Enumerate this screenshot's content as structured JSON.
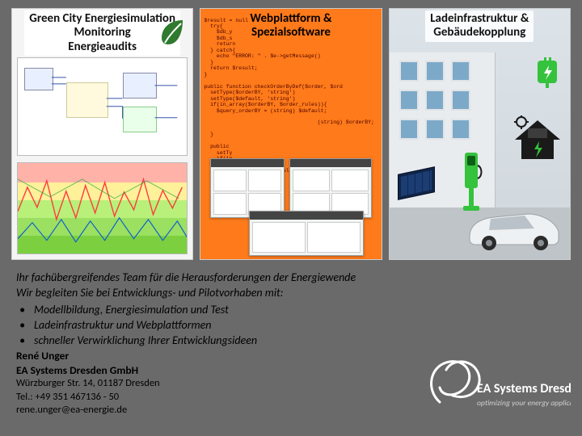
{
  "cards": [
    {
      "title": "Green City Energiesimulation\nMonitoring\nEnergieaudits",
      "leaf_color": "#2f7a2f"
    },
    {
      "title": "Webplattform &\nSpezialsoftware",
      "accent": "#ff7a1a",
      "code": "$result = null\n  try{\n    $db_y\n    $db_s\n    return\n  } catch{\n    echo \"ERROR: \" . $e->getMessage()\n  }\n  return $result;\n}\n\npublic function checkOrderByDef($order, $ord\n  setType($orderBY, 'string')\n  setType($default, 'string')\n  if(in_array($orderBY, $order_rules)){\n    $query_orderBY = (string) $default;\n\n                                    (string) $orderBY;\n\n  }\n\n  public\n    setTy\n    if(in\n      $que\n      return(string)$default;($ord\n    }\n  # result OK"
    },
    {
      "title": "Ladeinfrastruktur &\nGebäudekopplung",
      "charge_color": "#35c23d",
      "house_color": "#1a1a1a"
    }
  ],
  "text": {
    "line1": "Ihr fachübergreifendes Team für die Herausforderungen der Energiewende",
    "line2": "Wir begleiten Sie bei Entwicklungs- und Pilotvorhaben mit:",
    "bullets": [
      "Modellbildung, Energiesimulation und Test",
      "Ladeinfrastruktur und Webplattformen",
      "schneller Verwirklichung Ihrer Entwicklungsideen"
    ]
  },
  "contact": {
    "name": "René Unger",
    "company": "EA Systems Dresden GmbH",
    "addr": "Würzburger Str. 14, 01187 Dresden",
    "tel": "Tel.: +49 351 467136 - 50",
    "mail": "rene.unger@ea-energie.de"
  },
  "logo": {
    "name": "EA Systems Dresden",
    "tag": "optimizing your energy applications",
    "stroke": "#ffffff"
  },
  "chart": {
    "line_color": "#ff3c3c",
    "line2_color": "#1060d0",
    "bands": [
      "#ffb3a8",
      "#fff09a",
      "#b8f07a",
      "#9be060",
      "#7cd040"
    ]
  },
  "palette": {
    "slide_bg": "#6a6a6a",
    "card_bg": "#f4f4f4",
    "card2_bg": "#ff7a1a"
  }
}
